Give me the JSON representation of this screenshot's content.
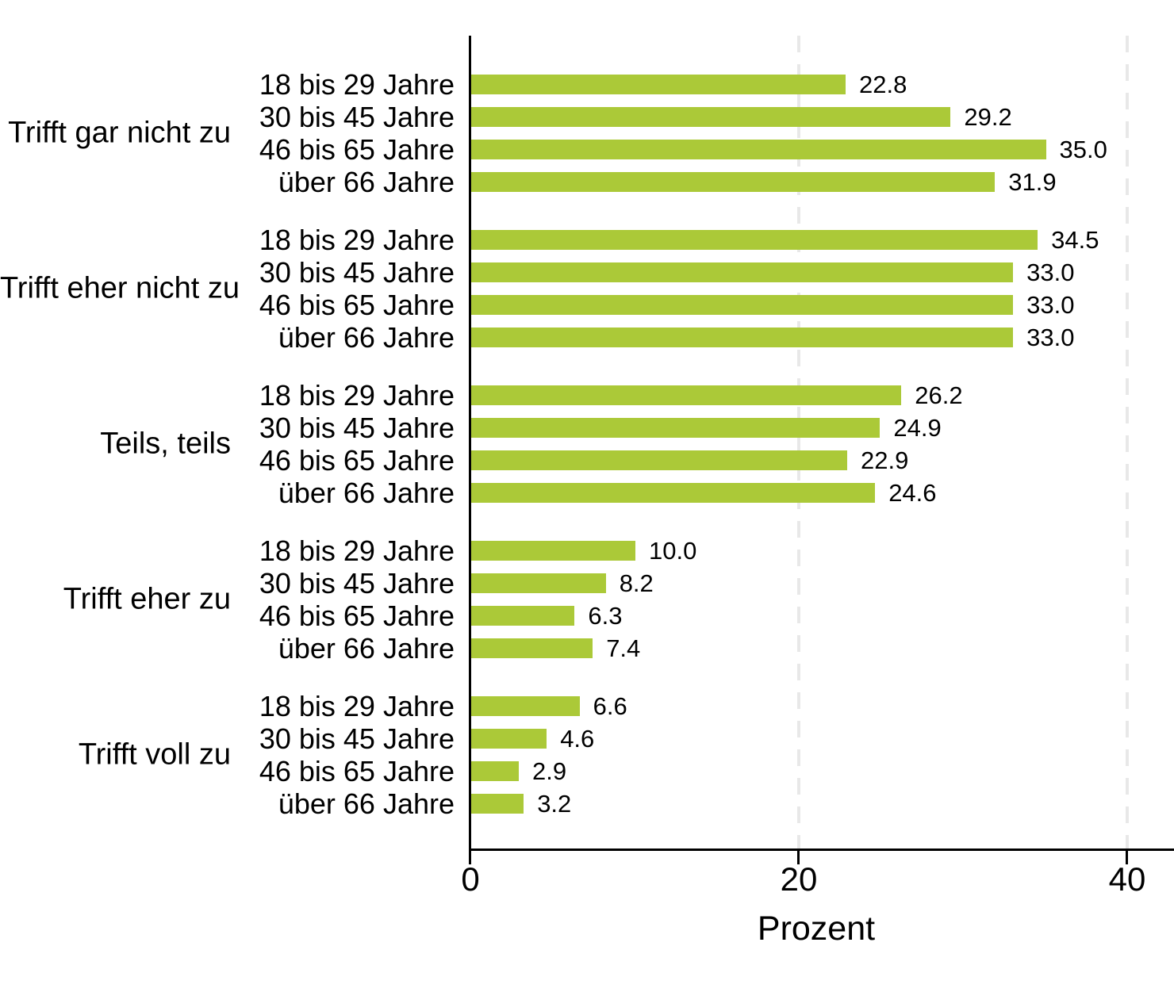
{
  "chart_data": {
    "type": "bar",
    "orientation": "horizontal",
    "title": "",
    "xlabel": "Prozent",
    "ylabel": "",
    "x_ticks": [
      0,
      20,
      40
    ],
    "x_tick_labels": [
      "0",
      "20",
      "40"
    ],
    "xlim": [
      0,
      42.9
    ],
    "grid": "dashed vertical gridlines at 20 and 40",
    "legend": "none",
    "bar_color": "#abc938",
    "axis_color": "#000000",
    "gridline_color": "#e8e8e8",
    "age_categories": [
      "18 bis 29 Jahre",
      "30 bis 45 Jahre",
      "46 bis 65 Jahre",
      "über 66 Jahre"
    ],
    "groups": [
      {
        "label": "Trifft gar nicht zu",
        "values": [
          22.8,
          29.2,
          35.0,
          31.9
        ],
        "display_values": [
          "22.8",
          "29.2",
          "35.0",
          "31.9"
        ]
      },
      {
        "label": "Trifft eher nicht zu",
        "values": [
          34.5,
          33.0,
          33.0,
          33.0
        ],
        "display_values": [
          "34.5",
          "33.0",
          "33.0",
          "33.0"
        ]
      },
      {
        "label": "Teils, teils",
        "values": [
          26.2,
          24.9,
          22.9,
          24.6
        ],
        "display_values": [
          "26.2",
          "24.9",
          "22.9",
          "24.6"
        ]
      },
      {
        "label": "Trifft eher zu",
        "values": [
          10.0,
          8.2,
          6.3,
          7.4
        ],
        "display_values": [
          "10.0",
          "8.2",
          "6.3",
          "7.4"
        ]
      },
      {
        "label": "Trifft voll zu",
        "values": [
          6.6,
          4.6,
          2.9,
          3.2
        ],
        "display_values": [
          "6.6",
          "4.6",
          "2.9",
          "3.2"
        ]
      }
    ]
  }
}
